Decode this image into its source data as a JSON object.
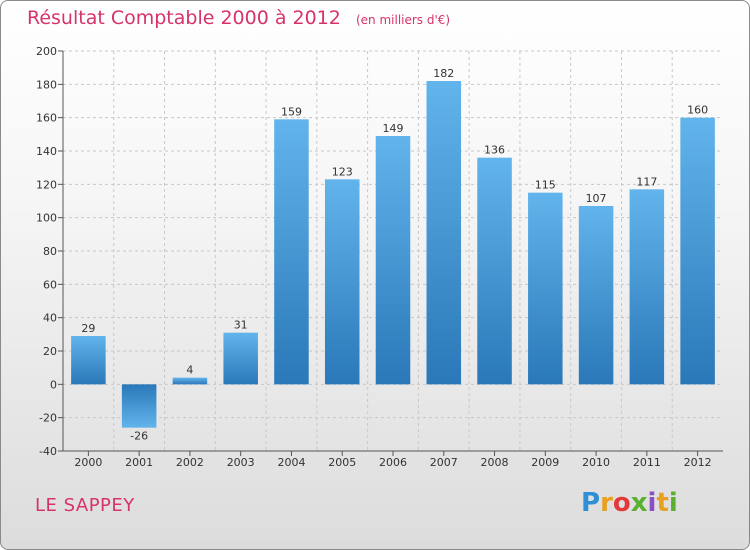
{
  "chart_data": {
    "type": "bar",
    "title": "Résultat Comptable 2000 à 2012",
    "subtitle": "(en milliers d'€)",
    "categories": [
      "2000",
      "2001",
      "2002",
      "2003",
      "2004",
      "2005",
      "2006",
      "2007",
      "2008",
      "2009",
      "2010",
      "2011",
      "2012"
    ],
    "values": [
      29,
      -26,
      4,
      31,
      159,
      123,
      149,
      182,
      136,
      115,
      107,
      117,
      160
    ],
    "value_labels": [
      "29",
      "-26",
      "4",
      "31",
      "159",
      "123",
      "149",
      "182",
      "136",
      "115",
      "107",
      "117",
      "160"
    ],
    "y_ticks": [
      -40,
      -20,
      0,
      20,
      40,
      60,
      80,
      100,
      120,
      140,
      160,
      180,
      200
    ],
    "ylim": [
      -40,
      200
    ],
    "xlabel": "",
    "ylabel": "",
    "grid": true,
    "bar_color_light": "#62b4ec",
    "bar_color_dark": "#2a78b8"
  },
  "footer": {
    "commune": "LE SAPPEY",
    "brand": [
      "P",
      "r",
      "o",
      "x",
      "i",
      "t",
      "i"
    ]
  },
  "colors": {
    "title": "#d6336c",
    "grid": "#c8c8c8"
  }
}
